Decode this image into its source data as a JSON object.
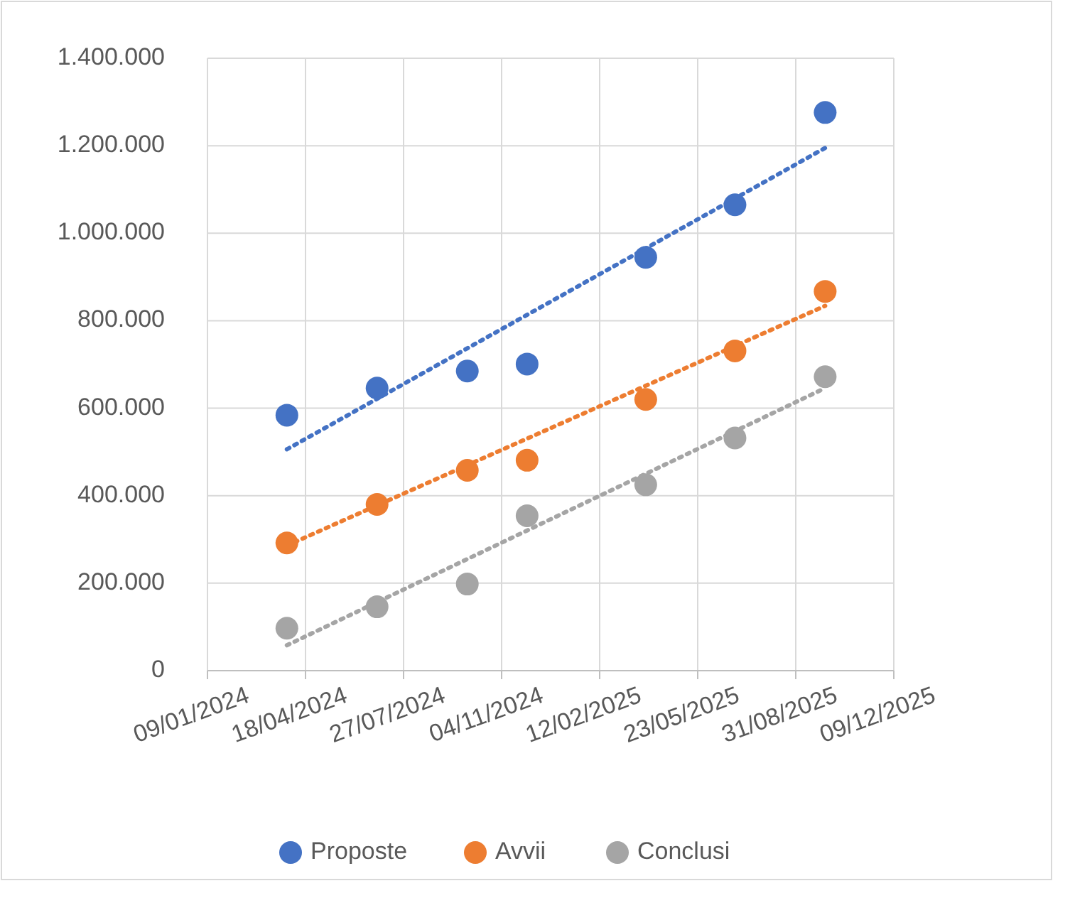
{
  "chart_data": {
    "type": "scatter",
    "marker": "circle",
    "grid": true,
    "legend": "bottom",
    "xlim": [
      "2024-01-09",
      "2025-12-09"
    ],
    "xticks": [
      {
        "value": "2024-01-09",
        "label": "09/01/2024"
      },
      {
        "value": "2024-04-18",
        "label": "18/04/2024"
      },
      {
        "value": "2024-07-27",
        "label": "27/07/2024"
      },
      {
        "value": "2024-11-04",
        "label": "04/11/2024"
      },
      {
        "value": "2025-02-12",
        "label": "12/02/2025"
      },
      {
        "value": "2025-05-23",
        "label": "23/05/2025"
      },
      {
        "value": "2025-08-31",
        "label": "31/08/2025"
      },
      {
        "value": "2025-12-09",
        "label": "09/12/2025"
      }
    ],
    "ylim": [
      0,
      1400000
    ],
    "yticks": [
      0,
      {
        "value": 200000,
        "label": "200.000"
      },
      {
        "value": 400000,
        "label": "400.000"
      },
      {
        "value": 600000,
        "label": "600.000"
      },
      {
        "value": 800000,
        "label": "800.000"
      },
      {
        "value": 1000000,
        "label": "1.000.000"
      },
      {
        "value": 1200000,
        "label": "1.200.000"
      },
      {
        "value": 1400000,
        "label": "1.400.000"
      }
    ],
    "x": [
      "2024-03-30",
      "2024-06-30",
      "2024-09-30",
      "2024-11-30",
      "2025-03-31",
      "2025-06-30",
      "2025-09-30"
    ],
    "series": [
      {
        "name": "Proposte",
        "color": "#4472c4",
        "values": [
          584000,
          646000,
          685000,
          701000,
          945000,
          1065000,
          1276000
        ]
      },
      {
        "name": "Avvii",
        "color": "#ed7d31",
        "values": [
          292000,
          380000,
          458000,
          481000,
          620000,
          731000,
          867000
        ]
      },
      {
        "name": "Conclusi",
        "color": "#a5a5a5",
        "values": [
          97000,
          146000,
          198000,
          354000,
          425000,
          532000,
          672000
        ]
      },
      {
        "type": "line",
        "line_style": "dotted",
        "marker": "none",
        "color": "#4472c4",
        "x": [
          "2024-03-30",
          "2025-09-30"
        ],
        "values": [
          506000,
          1195000
        ]
      },
      {
        "type": "line",
        "line_style": "dotted",
        "marker": "none",
        "color": "#ed7d31",
        "x": [
          "2024-03-30",
          "2025-09-30"
        ],
        "values": [
          286000,
          834000
        ]
      },
      {
        "type": "line",
        "line_style": "dotted",
        "marker": "none",
        "color": "#a5a5a5",
        "x": [
          "2024-03-30",
          "2025-09-30"
        ],
        "values": [
          58000,
          646000
        ]
      }
    ]
  }
}
